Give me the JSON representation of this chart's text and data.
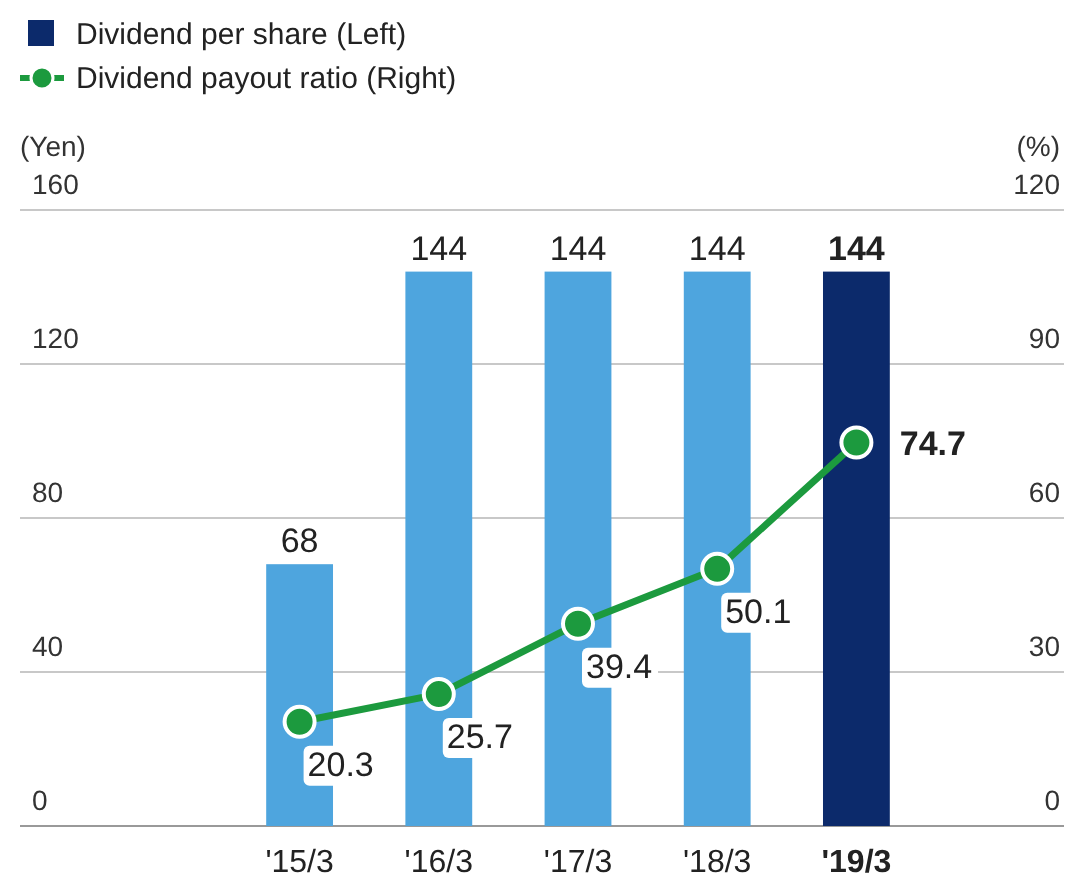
{
  "chart_data": {
    "type": "bar",
    "categories": [
      "'15/3",
      "'16/3",
      "'17/3",
      "'18/3",
      "'19/3"
    ],
    "series": [
      {
        "name": "Dividend per share (Left)",
        "colors": [
          "#4ea5de",
          "#4ea5de",
          "#4ea5de",
          "#4ea5de",
          "#0c2a6b"
        ],
        "values": [
          68,
          144,
          144,
          144,
          144
        ]
      },
      {
        "name": "Dividend payout ratio (Right)",
        "type": "line",
        "axis": "y2",
        "color": "#1c9a3e",
        "values": [
          20.3,
          25.7,
          39.4,
          50.1,
          74.7
        ]
      }
    ],
    "ylabel": "(Yen)",
    "y2label": "(%)",
    "ylim": [
      0,
      160
    ],
    "yticks": [
      0,
      40,
      80,
      120,
      160
    ],
    "y2lim": [
      0,
      120
    ],
    "y2ticks": [
      0,
      30,
      60,
      90,
      120
    ],
    "grid": "y",
    "legend": "top left",
    "marker": "circle",
    "data_labels": true
  }
}
